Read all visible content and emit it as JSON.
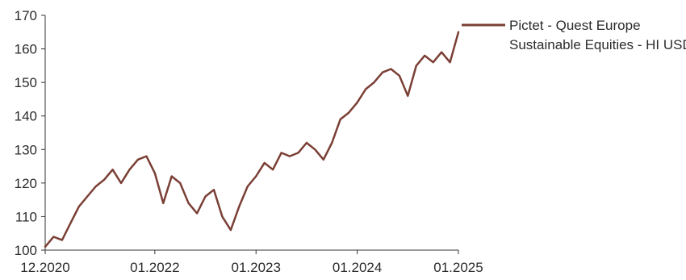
{
  "chart_data": {
    "type": "line",
    "title": "",
    "xlabel": "",
    "ylabel": "",
    "ylim": [
      100,
      170
    ],
    "yticks": [
      100,
      110,
      120,
      130,
      140,
      150,
      160,
      170
    ],
    "xlim": [
      "2020-12",
      "2025-01"
    ],
    "xticks": [
      {
        "label": "12.2020",
        "date": "2020-12"
      },
      {
        "label": "01.2022",
        "date": "2022-01"
      },
      {
        "label": "01.2023",
        "date": "2023-01"
      },
      {
        "label": "01.2024",
        "date": "2024-01"
      },
      {
        "label": "01.2025",
        "date": "2025-01"
      }
    ],
    "grid": false,
    "legend_position": "top-right",
    "series": [
      {
        "name": "Pictet - Quest Europe Sustainable Equities - HI USD",
        "color": "#7a3f35",
        "x": [
          "2020-12",
          "2021-01",
          "2021-02",
          "2021-03",
          "2021-04",
          "2021-05",
          "2021-06",
          "2021-07",
          "2021-08",
          "2021-09",
          "2021-10",
          "2021-11",
          "2021-12",
          "2022-01",
          "2022-02",
          "2022-03",
          "2022-04",
          "2022-05",
          "2022-06",
          "2022-07",
          "2022-08",
          "2022-09",
          "2022-10",
          "2022-11",
          "2022-12",
          "2023-01",
          "2023-02",
          "2023-03",
          "2023-04",
          "2023-05",
          "2023-06",
          "2023-07",
          "2023-08",
          "2023-09",
          "2023-10",
          "2023-11",
          "2023-12",
          "2024-01",
          "2024-02",
          "2024-03",
          "2024-04",
          "2024-05",
          "2024-06",
          "2024-07",
          "2024-08",
          "2024-09",
          "2024-10",
          "2024-11",
          "2024-12",
          "2025-01"
        ],
        "values": [
          101,
          104,
          103,
          108,
          113,
          116,
          119,
          121,
          124,
          120,
          124,
          127,
          128,
          123,
          114,
          122,
          120,
          114,
          111,
          116,
          118,
          110,
          106,
          113,
          119,
          122,
          126,
          124,
          129,
          128,
          129,
          132,
          130,
          127,
          132,
          139,
          141,
          144,
          148,
          150,
          153,
          154,
          152,
          146,
          155,
          158,
          156,
          159,
          156,
          165
        ]
      }
    ]
  }
}
